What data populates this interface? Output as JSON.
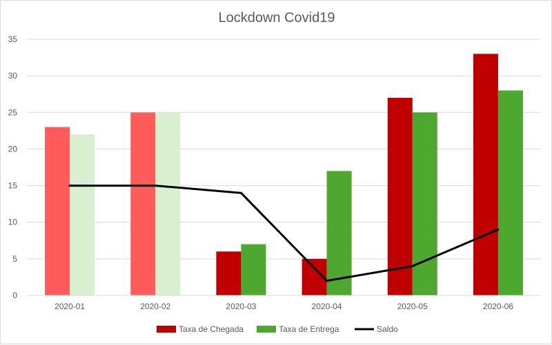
{
  "chart_data": {
    "type": "bar",
    "title": "Lockdown Covid19",
    "categories": [
      "2020-01",
      "2020-02",
      "2020-03",
      "2020-04",
      "2020-05",
      "2020-06"
    ],
    "series": [
      {
        "name": "Taxa de Chegada",
        "kind": "bar",
        "values": [
          23,
          25,
          6,
          5,
          27,
          33
        ],
        "color": "#c00000",
        "faded_color": "#ff5b5b",
        "faded_points": [
          0,
          1
        ]
      },
      {
        "name": "Taxa de Entrega",
        "kind": "bar",
        "values": [
          22,
          25,
          7,
          17,
          25,
          28
        ],
        "color": "#4ea72e",
        "faded_color": "#d9f0d0",
        "faded_points": [
          0,
          1
        ]
      },
      {
        "name": "Saldo",
        "kind": "line",
        "values": [
          15,
          15,
          14,
          2,
          4,
          9
        ],
        "color": "#000000"
      }
    ],
    "ylim": [
      0,
      35
    ],
    "yticks": [
      "0",
      "5",
      "10",
      "15",
      "20",
      "25",
      "30",
      "35"
    ],
    "grid": true,
    "legend_position": "bottom"
  }
}
